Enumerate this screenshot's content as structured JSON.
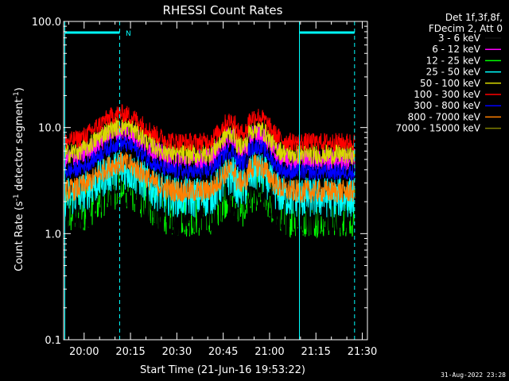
{
  "chart_data": {
    "type": "line",
    "title": "RHESSI Count Rates",
    "xlabel": "Start Time (21-Jun-16 19:53:22)",
    "ylabel_main": "Count Rate (s",
    "ylabel_sup1": "-1",
    "ylabel_mid": " detector segment",
    "ylabel_sup2": "-1",
    "ylabel_end": ")",
    "y_scale": "log",
    "ylim": [
      0.1,
      100.0
    ],
    "y_ticks": [
      0.1,
      1.0,
      10.0,
      100.0
    ],
    "y_tick_labels": [
      "0.1",
      "1.0",
      "10.0",
      "100.0"
    ],
    "x_range_minutes": [
      "19:53:22",
      "21:31:40"
    ],
    "x_ticks": [
      "20:00",
      "20:15",
      "20:30",
      "20:45",
      "21:00",
      "21:15",
      "21:30"
    ],
    "legend_header": [
      "Det 1f,3f,8f,",
      "FDecim 2, Att 0"
    ],
    "legend_placement": "right",
    "series": [
      {
        "name": "3 - 6 keV",
        "color": "#000000"
      },
      {
        "name": "6 - 12 keV",
        "color": "#ff00ff"
      },
      {
        "name": "12 - 25 keV",
        "color": "#00ff00"
      },
      {
        "name": "25 - 50 keV",
        "color": "#00ffff"
      },
      {
        "name": "50 - 100 keV",
        "color": "#d8d800"
      },
      {
        "name": "100 - 300 keV",
        "color": "#ff0000"
      },
      {
        "name": "300 - 800 keV",
        "color": "#0000ff"
      },
      {
        "name": "800 - 7000 keV",
        "color": "#ff8000"
      },
      {
        "name": "7000 - 15000 keV",
        "color": "#808000"
      }
    ],
    "annotations": {
      "night_marker_label": "N",
      "vertical_lines_solid": [
        "19:53:45",
        "21:09:40"
      ],
      "vertical_lines_dashed": [
        "20:11:30",
        "21:27:30"
      ]
    },
    "footer_date": "31-Aug-2022 23:28"
  }
}
